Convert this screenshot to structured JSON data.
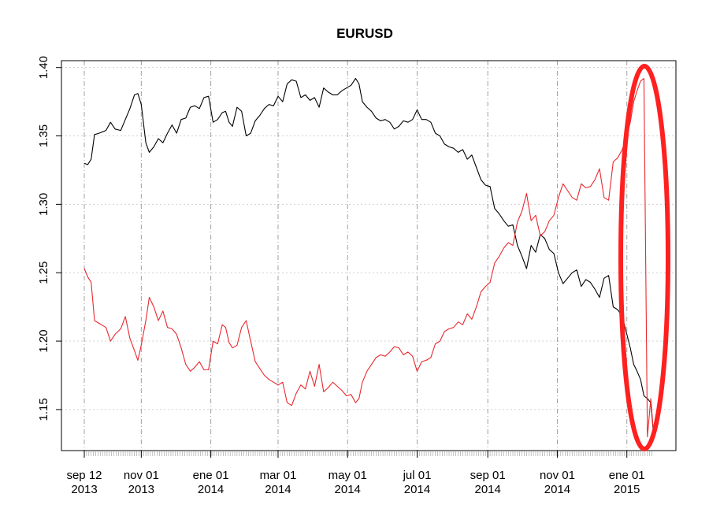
{
  "chart_data": {
    "type": "line",
    "title": "EURUSD",
    "xlabel": "",
    "ylabel": "",
    "ylim": [
      1.12,
      1.405
    ],
    "y_ticks": [
      1.15,
      1.2,
      1.25,
      1.3,
      1.35,
      1.4
    ],
    "y_tick_labels": [
      "1.15",
      "1.20",
      "1.25",
      "1.30",
      "1.35",
      "1.40"
    ],
    "x_range": [
      "2013-09-12",
      "2015-01-24"
    ],
    "x_ticks": [
      {
        "date": "2013-09-12",
        "line1": "sep 12",
        "line2": "2013"
      },
      {
        "date": "2013-11-01",
        "line1": "nov 01",
        "line2": "2013"
      },
      {
        "date": "2014-01-01",
        "line1": "ene 01",
        "line2": "2014"
      },
      {
        "date": "2014-03-01",
        "line1": "mar 01",
        "line2": "2014"
      },
      {
        "date": "2014-05-01",
        "line1": "may 01",
        "line2": "2014"
      },
      {
        "date": "2014-07-01",
        "line1": "jul 01",
        "line2": "2014"
      },
      {
        "date": "2014-09-01",
        "line1": "sep 01",
        "line2": "2014"
      },
      {
        "date": "2014-11-01",
        "line1": "nov 01",
        "line2": "2014"
      },
      {
        "date": "2015-01-01",
        "line1": "ene 01",
        "line2": "2015"
      }
    ],
    "grid": true,
    "colors": {
      "series1": "#000000",
      "series2": "#e8282e",
      "highlight": "#ff2020"
    },
    "series": [
      {
        "color": "#000000",
        "points": [
          [
            "2013-09-12",
            1.33
          ],
          [
            "2013-09-15",
            1.329
          ],
          [
            "2013-09-18",
            1.333
          ],
          [
            "2013-09-21",
            1.351
          ],
          [
            "2013-09-25",
            1.352
          ],
          [
            "2013-10-01",
            1.354
          ],
          [
            "2013-10-05",
            1.36
          ],
          [
            "2013-10-09",
            1.355
          ],
          [
            "2013-10-14",
            1.354
          ],
          [
            "2013-10-18",
            1.362
          ],
          [
            "2013-10-22",
            1.37
          ],
          [
            "2013-10-26",
            1.38
          ],
          [
            "2013-10-29",
            1.381
          ],
          [
            "2013-11-01",
            1.373
          ],
          [
            "2013-11-05",
            1.345
          ],
          [
            "2013-11-08",
            1.338
          ],
          [
            "2013-11-12",
            1.342
          ],
          [
            "2013-11-16",
            1.348
          ],
          [
            "2013-11-20",
            1.345
          ],
          [
            "2013-11-24",
            1.352
          ],
          [
            "2013-11-28",
            1.358
          ],
          [
            "2013-12-02",
            1.352
          ],
          [
            "2013-12-06",
            1.362
          ],
          [
            "2013-12-10",
            1.363
          ],
          [
            "2013-12-14",
            1.371
          ],
          [
            "2013-12-18",
            1.372
          ],
          [
            "2013-12-22",
            1.37
          ],
          [
            "2013-12-26",
            1.378
          ],
          [
            "2013-12-30",
            1.379
          ],
          [
            "2014-01-03",
            1.36
          ],
          [
            "2014-01-07",
            1.362
          ],
          [
            "2014-01-11",
            1.367
          ],
          [
            "2014-01-14",
            1.368
          ],
          [
            "2014-01-17",
            1.36
          ],
          [
            "2014-01-20",
            1.357
          ],
          [
            "2014-01-24",
            1.371
          ],
          [
            "2014-01-28",
            1.368
          ],
          [
            "2014-02-01",
            1.35
          ],
          [
            "2014-02-05",
            1.352
          ],
          [
            "2014-02-09",
            1.361
          ],
          [
            "2014-02-13",
            1.365
          ],
          [
            "2014-02-17",
            1.37
          ],
          [
            "2014-02-21",
            1.373
          ],
          [
            "2014-02-25",
            1.372
          ],
          [
            "2014-03-01",
            1.379
          ],
          [
            "2014-03-05",
            1.375
          ],
          [
            "2014-03-09",
            1.388
          ],
          [
            "2014-03-13",
            1.391
          ],
          [
            "2014-03-17",
            1.39
          ],
          [
            "2014-03-21",
            1.378
          ],
          [
            "2014-03-25",
            1.38
          ],
          [
            "2014-03-29",
            1.376
          ],
          [
            "2014-04-02",
            1.378
          ],
          [
            "2014-04-06",
            1.371
          ],
          [
            "2014-04-10",
            1.385
          ],
          [
            "2014-04-14",
            1.382
          ],
          [
            "2014-04-18",
            1.38
          ],
          [
            "2014-04-22",
            1.38
          ],
          [
            "2014-04-26",
            1.383
          ],
          [
            "2014-04-30",
            1.385
          ],
          [
            "2014-05-04",
            1.387
          ],
          [
            "2014-05-08",
            1.392
          ],
          [
            "2014-05-11",
            1.388
          ],
          [
            "2014-05-14",
            1.375
          ],
          [
            "2014-05-18",
            1.371
          ],
          [
            "2014-05-22",
            1.368
          ],
          [
            "2014-05-26",
            1.363
          ],
          [
            "2014-05-30",
            1.361
          ],
          [
            "2014-06-03",
            1.362
          ],
          [
            "2014-06-07",
            1.36
          ],
          [
            "2014-06-11",
            1.355
          ],
          [
            "2014-06-15",
            1.357
          ],
          [
            "2014-06-19",
            1.361
          ],
          [
            "2014-06-23",
            1.36
          ],
          [
            "2014-06-27",
            1.362
          ],
          [
            "2014-07-01",
            1.369
          ],
          [
            "2014-07-05",
            1.362
          ],
          [
            "2014-07-09",
            1.362
          ],
          [
            "2014-07-13",
            1.36
          ],
          [
            "2014-07-17",
            1.352
          ],
          [
            "2014-07-21",
            1.35
          ],
          [
            "2014-07-25",
            1.344
          ],
          [
            "2014-07-29",
            1.342
          ],
          [
            "2014-08-02",
            1.341
          ],
          [
            "2014-08-06",
            1.338
          ],
          [
            "2014-08-10",
            1.34
          ],
          [
            "2014-08-14",
            1.333
          ],
          [
            "2014-08-18",
            1.336
          ],
          [
            "2014-08-22",
            1.327
          ],
          [
            "2014-08-26",
            1.318
          ],
          [
            "2014-08-30",
            1.314
          ],
          [
            "2014-09-03",
            1.313
          ],
          [
            "2014-09-07",
            1.297
          ],
          [
            "2014-09-11",
            1.293
          ],
          [
            "2014-09-15",
            1.288
          ],
          [
            "2014-09-19",
            1.284
          ],
          [
            "2014-09-23",
            1.285
          ],
          [
            "2014-09-27",
            1.27
          ],
          [
            "2014-10-01",
            1.262
          ],
          [
            "2014-10-05",
            1.253
          ],
          [
            "2014-10-09",
            1.27
          ],
          [
            "2014-10-13",
            1.265
          ],
          [
            "2014-10-17",
            1.278
          ],
          [
            "2014-10-21",
            1.275
          ],
          [
            "2014-10-25",
            1.267
          ],
          [
            "2014-10-29",
            1.264
          ],
          [
            "2014-11-02",
            1.25
          ],
          [
            "2014-11-06",
            1.242
          ],
          [
            "2014-11-10",
            1.246
          ],
          [
            "2014-11-14",
            1.25
          ],
          [
            "2014-11-18",
            1.252
          ],
          [
            "2014-11-22",
            1.24
          ],
          [
            "2014-11-26",
            1.245
          ],
          [
            "2014-11-30",
            1.243
          ],
          [
            "2014-12-04",
            1.238
          ],
          [
            "2014-12-08",
            1.232
          ],
          [
            "2014-12-12",
            1.246
          ],
          [
            "2014-12-16",
            1.248
          ],
          [
            "2014-12-20",
            1.225
          ],
          [
            "2014-12-24",
            1.223
          ],
          [
            "2014-12-28",
            1.218
          ],
          [
            "2015-01-01",
            1.205
          ],
          [
            "2015-01-04",
            1.195
          ],
          [
            "2015-01-07",
            1.183
          ],
          [
            "2015-01-10",
            1.178
          ],
          [
            "2015-01-13",
            1.172
          ],
          [
            "2015-01-16",
            1.16
          ],
          [
            "2015-01-19",
            1.158
          ],
          [
            "2015-01-22",
            1.155
          ],
          [
            "2015-01-24",
            1.136
          ]
        ]
      },
      {
        "color": "#e8282e",
        "points": [
          [
            "2013-09-12",
            1.253
          ],
          [
            "2013-09-15",
            1.247
          ],
          [
            "2013-09-18",
            1.243
          ],
          [
            "2013-09-21",
            1.215
          ],
          [
            "2013-09-25",
            1.213
          ],
          [
            "2013-10-01",
            1.21
          ],
          [
            "2013-10-05",
            1.2
          ],
          [
            "2013-10-09",
            1.205
          ],
          [
            "2013-10-14",
            1.209
          ],
          [
            "2013-10-18",
            1.218
          ],
          [
            "2013-10-22",
            1.202
          ],
          [
            "2013-10-26",
            1.193
          ],
          [
            "2013-10-29",
            1.186
          ],
          [
            "2013-11-01",
            1.197
          ],
          [
            "2013-11-05",
            1.215
          ],
          [
            "2013-11-08",
            1.232
          ],
          [
            "2013-11-12",
            1.225
          ],
          [
            "2013-11-16",
            1.215
          ],
          [
            "2013-11-20",
            1.222
          ],
          [
            "2013-11-24",
            1.21
          ],
          [
            "2013-11-28",
            1.209
          ],
          [
            "2013-12-02",
            1.205
          ],
          [
            "2013-12-06",
            1.195
          ],
          [
            "2013-12-10",
            1.183
          ],
          [
            "2013-12-14",
            1.178
          ],
          [
            "2013-12-18",
            1.181
          ],
          [
            "2013-12-22",
            1.185
          ],
          [
            "2013-12-26",
            1.179
          ],
          [
            "2013-12-30",
            1.179
          ],
          [
            "2014-01-03",
            1.2
          ],
          [
            "2014-01-07",
            1.198
          ],
          [
            "2014-01-11",
            1.212
          ],
          [
            "2014-01-14",
            1.21
          ],
          [
            "2014-01-17",
            1.199
          ],
          [
            "2014-01-20",
            1.195
          ],
          [
            "2014-01-24",
            1.197
          ],
          [
            "2014-01-28",
            1.21
          ],
          [
            "2014-02-01",
            1.215
          ],
          [
            "2014-02-05",
            1.2
          ],
          [
            "2014-02-09",
            1.185
          ],
          [
            "2014-02-13",
            1.18
          ],
          [
            "2014-02-17",
            1.175
          ],
          [
            "2014-02-21",
            1.172
          ],
          [
            "2014-02-25",
            1.17
          ],
          [
            "2014-03-01",
            1.168
          ],
          [
            "2014-03-05",
            1.17
          ],
          [
            "2014-03-09",
            1.155
          ],
          [
            "2014-03-13",
            1.153
          ],
          [
            "2014-03-17",
            1.162
          ],
          [
            "2014-03-21",
            1.168
          ],
          [
            "2014-03-25",
            1.165
          ],
          [
            "2014-03-29",
            1.178
          ],
          [
            "2014-04-02",
            1.167
          ],
          [
            "2014-04-06",
            1.183
          ],
          [
            "2014-04-10",
            1.163
          ],
          [
            "2014-04-14",
            1.166
          ],
          [
            "2014-04-18",
            1.17
          ],
          [
            "2014-04-22",
            1.167
          ],
          [
            "2014-04-26",
            1.164
          ],
          [
            "2014-04-30",
            1.16
          ],
          [
            "2014-05-04",
            1.161
          ],
          [
            "2014-05-08",
            1.155
          ],
          [
            "2014-05-11",
            1.158
          ],
          [
            "2014-05-14",
            1.17
          ],
          [
            "2014-05-18",
            1.178
          ],
          [
            "2014-05-22",
            1.183
          ],
          [
            "2014-05-26",
            1.188
          ],
          [
            "2014-05-30",
            1.19
          ],
          [
            "2014-06-03",
            1.189
          ],
          [
            "2014-06-07",
            1.192
          ],
          [
            "2014-06-11",
            1.196
          ],
          [
            "2014-06-15",
            1.195
          ],
          [
            "2014-06-19",
            1.19
          ],
          [
            "2014-06-23",
            1.192
          ],
          [
            "2014-06-27",
            1.189
          ],
          [
            "2014-07-01",
            1.178
          ],
          [
            "2014-07-05",
            1.185
          ],
          [
            "2014-07-09",
            1.186
          ],
          [
            "2014-07-13",
            1.188
          ],
          [
            "2014-07-17",
            1.198
          ],
          [
            "2014-07-21",
            1.2
          ],
          [
            "2014-07-25",
            1.207
          ],
          [
            "2014-07-29",
            1.209
          ],
          [
            "2014-08-02",
            1.21
          ],
          [
            "2014-08-06",
            1.214
          ],
          [
            "2014-08-10",
            1.212
          ],
          [
            "2014-08-14",
            1.22
          ],
          [
            "2014-08-18",
            1.216
          ],
          [
            "2014-08-22",
            1.225
          ],
          [
            "2014-08-26",
            1.236
          ],
          [
            "2014-08-30",
            1.24
          ],
          [
            "2014-09-03",
            1.243
          ],
          [
            "2014-09-07",
            1.257
          ],
          [
            "2014-09-11",
            1.262
          ],
          [
            "2014-09-15",
            1.268
          ],
          [
            "2014-09-19",
            1.272
          ],
          [
            "2014-09-23",
            1.27
          ],
          [
            "2014-09-27",
            1.287
          ],
          [
            "2014-10-01",
            1.295
          ],
          [
            "2014-10-05",
            1.308
          ],
          [
            "2014-10-09",
            1.288
          ],
          [
            "2014-10-13",
            1.292
          ],
          [
            "2014-10-17",
            1.277
          ],
          [
            "2014-10-21",
            1.28
          ],
          [
            "2014-10-25",
            1.288
          ],
          [
            "2014-10-29",
            1.292
          ],
          [
            "2014-11-02",
            1.305
          ],
          [
            "2014-11-06",
            1.315
          ],
          [
            "2014-11-10",
            1.31
          ],
          [
            "2014-11-14",
            1.305
          ],
          [
            "2014-11-18",
            1.303
          ],
          [
            "2014-11-22",
            1.315
          ],
          [
            "2014-11-26",
            1.312
          ],
          [
            "2014-11-30",
            1.313
          ],
          [
            "2014-12-04",
            1.318
          ],
          [
            "2014-12-08",
            1.326
          ],
          [
            "2014-12-12",
            1.305
          ],
          [
            "2014-12-16",
            1.303
          ],
          [
            "2014-12-20",
            1.331
          ],
          [
            "2014-12-24",
            1.334
          ],
          [
            "2014-12-28",
            1.34
          ],
          [
            "2015-01-01",
            1.35
          ],
          [
            "2015-01-04",
            1.36
          ],
          [
            "2015-01-07",
            1.375
          ],
          [
            "2015-01-10",
            1.383
          ],
          [
            "2015-01-13",
            1.39
          ],
          [
            "2015-01-16",
            1.392
          ],
          [
            "2015-01-19",
            1.13
          ],
          [
            "2015-01-22",
            1.158
          ],
          [
            "2015-01-24",
            1.137
          ]
        ]
      }
    ]
  }
}
